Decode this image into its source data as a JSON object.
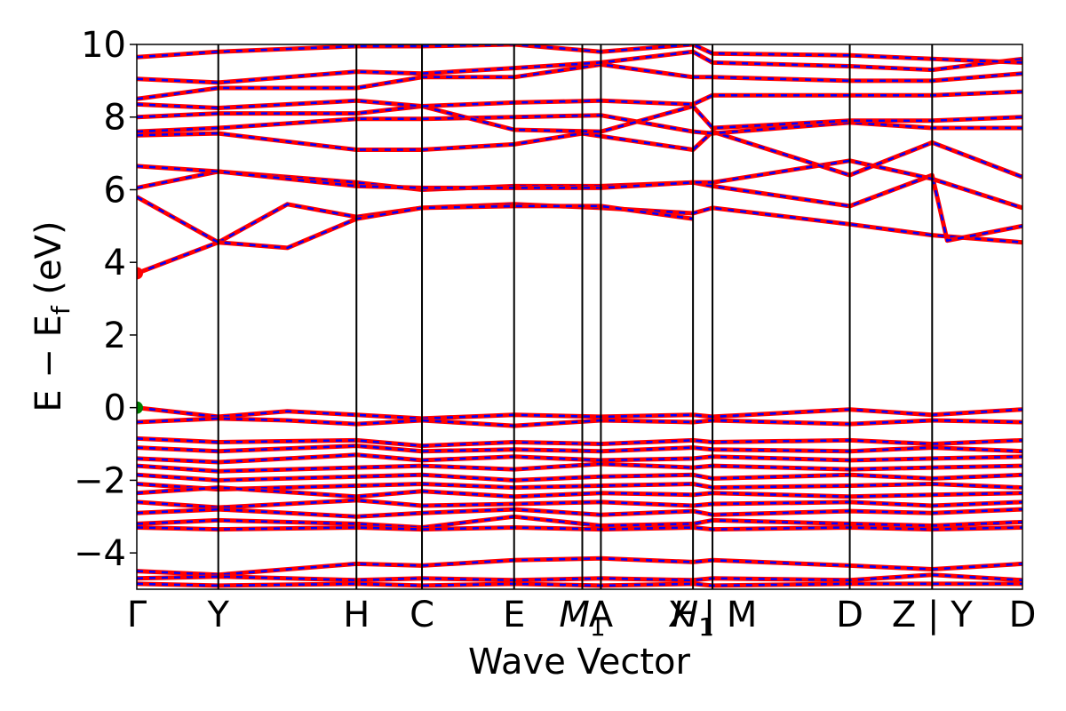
{
  "chart_data": {
    "type": "line",
    "title": "",
    "xlabel": "Wave Vector",
    "ylabel_main": "E − E",
    "ylabel_sub": "f",
    "ylabel_unit": "(eV)",
    "ylim": [
      -5,
      10
    ],
    "yticks": [
      -4,
      -2,
      0,
      2,
      4,
      6,
      8,
      10
    ],
    "yticklabels": [
      "−4",
      "−2",
      "0",
      "2",
      "4",
      "6",
      "8",
      "10"
    ],
    "grid": false,
    "colors": {
      "band_primary": "#ff0000",
      "band_secondary": "#0000ff",
      "vbm_marker": "#008000",
      "cbm_marker": "#ff0000",
      "kpath_line": "#000000"
    },
    "kpoints": [
      {
        "pos": 0.0,
        "label": "Γ"
      },
      {
        "pos": 0.092,
        "label": "Y"
      },
      {
        "pos": 0.248,
        "label": "H"
      },
      {
        "pos": 0.322,
        "label": "C"
      },
      {
        "pos": 0.426,
        "label": "E"
      },
      {
        "pos": 0.503,
        "label": "M",
        "sub": "1",
        "italic": true
      },
      {
        "pos": 0.524,
        "label": "A"
      },
      {
        "pos": 0.628,
        "label": "H",
        "sub": "1",
        "italic": true
      },
      {
        "pos": 0.65,
        "label": "X | M"
      },
      {
        "pos": 0.805,
        "label": "D"
      },
      {
        "pos": 0.898,
        "label": "Z | Y"
      },
      {
        "pos": 1.0,
        "label": "D"
      }
    ],
    "markers": [
      {
        "name": "VBM",
        "x": 0.0,
        "y": 0.0
      },
      {
        "name": "CBM",
        "x": 0.0,
        "y": 3.7
      }
    ],
    "bands": [
      {
        "name": "cb1",
        "x": [
          0,
          0.092,
          0.17,
          0.248,
          0.322,
          0.426,
          0.524,
          0.628,
          0.65,
          0.805,
          0.898,
          1.0
        ],
        "y": [
          3.7,
          4.55,
          5.6,
          5.25,
          5.5,
          5.6,
          5.5,
          5.35,
          5.5,
          5.05,
          4.75,
          4.55
        ]
      },
      {
        "name": "cb2",
        "x": [
          0,
          0.092,
          0.17,
          0.248,
          0.322,
          0.426,
          0.524,
          0.628
        ],
        "y": [
          5.8,
          4.55,
          4.4,
          5.2,
          5.5,
          5.55,
          5.55,
          5.2
        ]
      },
      {
        "name": "cb3",
        "x": [
          0,
          0.092,
          0.248,
          0.322,
          0.426,
          0.524,
          0.628,
          0.65,
          0.805,
          0.898,
          0.915,
          1.0
        ],
        "y": [
          6.05,
          6.5,
          6.2,
          6.0,
          6.1,
          6.1,
          6.2,
          6.1,
          5.55,
          6.4,
          4.6,
          5.0
        ]
      },
      {
        "name": "cb4",
        "x": [
          0,
          0.092,
          0.248,
          0.322,
          0.426,
          0.524,
          0.628,
          0.65,
          0.805,
          0.898,
          1.0
        ],
        "y": [
          6.65,
          6.5,
          6.1,
          6.05,
          6.05,
          6.05,
          6.2,
          6.2,
          6.8,
          6.3,
          5.5
        ]
      },
      {
        "name": "cb5",
        "x": [
          0,
          0.092,
          0.248,
          0.322,
          0.426,
          0.503,
          0.628,
          0.65,
          0.805,
          0.898,
          1.0
        ],
        "y": [
          7.5,
          7.55,
          7.1,
          7.1,
          7.25,
          7.55,
          7.1,
          7.6,
          6.4,
          7.3,
          6.35
        ]
      },
      {
        "name": "cb6",
        "x": [
          0,
          0.092,
          0.248,
          0.322,
          0.426,
          0.524,
          0.628,
          0.65,
          0.805,
          0.898,
          1.0
        ],
        "y": [
          7.6,
          7.7,
          7.95,
          7.95,
          8.0,
          8.05,
          7.6,
          7.55,
          7.85,
          7.7,
          7.7
        ]
      },
      {
        "name": "cb7",
        "x": [
          0,
          0.092,
          0.248,
          0.322,
          0.426,
          0.524,
          0.628,
          0.65,
          0.805,
          0.898,
          1.0
        ],
        "y": [
          8.0,
          8.1,
          8.1,
          8.3,
          7.65,
          7.6,
          8.3,
          7.7,
          7.9,
          7.9,
          8.0
        ]
      },
      {
        "name": "cb8",
        "x": [
          0,
          0.092,
          0.248,
          0.322,
          0.426,
          0.524,
          0.628,
          0.65,
          0.805,
          0.898,
          1.0
        ],
        "y": [
          8.35,
          8.25,
          8.45,
          8.3,
          8.4,
          8.45,
          8.35,
          8.6,
          8.6,
          8.6,
          8.7
        ]
      },
      {
        "name": "cb9",
        "x": [
          0,
          0.092,
          0.248,
          0.322,
          0.426,
          0.524,
          0.628,
          0.65,
          0.805,
          0.898,
          1.0
        ],
        "y": [
          8.5,
          8.8,
          8.8,
          9.1,
          9.1,
          9.45,
          9.1,
          9.1,
          9.0,
          9.0,
          9.2
        ]
      },
      {
        "name": "cb10",
        "x": [
          0,
          0.092,
          0.248,
          0.322,
          0.426,
          0.524,
          0.628,
          0.65,
          0.805,
          0.898,
          1.0
        ],
        "y": [
          9.05,
          8.95,
          9.25,
          9.2,
          9.35,
          9.5,
          9.8,
          9.5,
          9.4,
          9.3,
          9.6
        ]
      },
      {
        "name": "cb11",
        "x": [
          0,
          0.092,
          0.248,
          0.322,
          0.426,
          0.524,
          0.628,
          0.65,
          0.805,
          0.898,
          1.0
        ],
        "y": [
          9.65,
          9.8,
          9.95,
          9.95,
          10.0,
          9.8,
          10.0,
          9.75,
          9.7,
          9.6,
          9.5
        ]
      },
      {
        "name": "vb1",
        "x": [
          0,
          0.092,
          0.17,
          0.248,
          0.322,
          0.426,
          0.524,
          0.628,
          0.65,
          0.805,
          0.898,
          1.0
        ],
        "y": [
          0.0,
          -0.25,
          -0.1,
          -0.2,
          -0.3,
          -0.2,
          -0.25,
          -0.2,
          -0.25,
          -0.05,
          -0.2,
          -0.05
        ]
      },
      {
        "name": "vb2",
        "x": [
          0,
          0.092,
          0.17,
          0.248,
          0.322,
          0.426,
          0.524,
          0.628,
          0.65,
          0.805,
          0.898,
          1.0
        ],
        "y": [
          -0.4,
          -0.3,
          -0.35,
          -0.45,
          -0.35,
          -0.5,
          -0.35,
          -0.4,
          -0.35,
          -0.45,
          -0.35,
          -0.4
        ]
      },
      {
        "name": "vb3",
        "x": [
          0,
          0.092,
          0.248,
          0.322,
          0.426,
          0.524,
          0.628,
          0.65,
          0.805,
          0.898,
          1.0
        ],
        "y": [
          -0.85,
          -0.95,
          -0.9,
          -1.05,
          -0.95,
          -1.0,
          -0.9,
          -0.95,
          -0.9,
          -1.0,
          -0.9
        ]
      },
      {
        "name": "vb4",
        "x": [
          0,
          0.092,
          0.248,
          0.322,
          0.426,
          0.524,
          0.628,
          0.65,
          0.805,
          0.898,
          1.0
        ],
        "y": [
          -1.1,
          -1.2,
          -1.05,
          -1.2,
          -1.15,
          -1.2,
          -1.1,
          -1.15,
          -1.2,
          -1.1,
          -1.2
        ]
      },
      {
        "name": "vb5",
        "x": [
          0,
          0.092,
          0.248,
          0.322,
          0.426,
          0.524,
          0.628,
          0.65,
          0.805,
          0.898,
          1.0
        ],
        "y": [
          -1.4,
          -1.5,
          -1.3,
          -1.45,
          -1.35,
          -1.45,
          -1.4,
          -1.35,
          -1.45,
          -1.4,
          -1.35
        ]
      },
      {
        "name": "vb6",
        "x": [
          0,
          0.092,
          0.248,
          0.322,
          0.426,
          0.524,
          0.628,
          0.65,
          0.805,
          0.898,
          1.0
        ],
        "y": [
          -1.6,
          -1.75,
          -1.65,
          -1.6,
          -1.7,
          -1.55,
          -1.65,
          -1.6,
          -1.7,
          -1.65,
          -1.6
        ]
      },
      {
        "name": "vb7",
        "x": [
          0,
          0.092,
          0.248,
          0.322,
          0.426,
          0.524,
          0.628,
          0.65,
          0.805,
          0.898,
          1.0
        ],
        "y": [
          -1.85,
          -2.0,
          -1.9,
          -1.85,
          -2.0,
          -1.9,
          -1.85,
          -1.95,
          -1.85,
          -1.95,
          -1.85
        ]
      },
      {
        "name": "vb8",
        "x": [
          0,
          0.092,
          0.248,
          0.322,
          0.426,
          0.524,
          0.628,
          0.65,
          0.805,
          0.898,
          1.0
        ],
        "y": [
          -2.1,
          -2.25,
          -2.15,
          -2.1,
          -2.2,
          -2.15,
          -2.1,
          -2.2,
          -2.15,
          -2.1,
          -2.2
        ]
      },
      {
        "name": "vb9",
        "x": [
          0,
          0.092,
          0.248,
          0.322,
          0.426,
          0.524,
          0.628,
          0.65,
          0.805,
          0.898,
          1.0
        ],
        "y": [
          -2.35,
          -2.2,
          -2.45,
          -2.3,
          -2.45,
          -2.35,
          -2.4,
          -2.35,
          -2.45,
          -2.4,
          -2.35
        ]
      },
      {
        "name": "vb10",
        "x": [
          0,
          0.092,
          0.248,
          0.322,
          0.426,
          0.524,
          0.628,
          0.65,
          0.805,
          0.898,
          1.0
        ],
        "y": [
          -2.6,
          -2.75,
          -2.55,
          -2.7,
          -2.65,
          -2.6,
          -2.7,
          -2.65,
          -2.6,
          -2.7,
          -2.6
        ]
      },
      {
        "name": "vb11",
        "x": [
          0,
          0.092,
          0.248,
          0.322,
          0.426,
          0.524,
          0.628,
          0.65,
          0.805,
          0.898,
          1.0
        ],
        "y": [
          -2.9,
          -2.8,
          -3.0,
          -2.9,
          -2.8,
          -2.95,
          -2.85,
          -2.95,
          -2.85,
          -2.9,
          -2.8
        ]
      },
      {
        "name": "vb12",
        "x": [
          0,
          0.092,
          0.248,
          0.322,
          0.426,
          0.524,
          0.628,
          0.65,
          0.805,
          0.898,
          1.0
        ],
        "y": [
          -3.2,
          -3.1,
          -3.2,
          -3.3,
          -3.0,
          -3.25,
          -3.2,
          -3.1,
          -3.2,
          -3.25,
          -3.15
        ]
      },
      {
        "name": "vb13",
        "x": [
          0,
          0.092,
          0.248,
          0.322,
          0.426,
          0.524,
          0.628,
          0.65,
          0.805,
          0.898,
          1.0
        ],
        "y": [
          -3.3,
          -3.35,
          -3.3,
          -3.35,
          -3.3,
          -3.35,
          -3.3,
          -3.35,
          -3.3,
          -3.35,
          -3.3
        ]
      },
      {
        "name": "vb14",
        "x": [
          0,
          0.092,
          0.248,
          0.322,
          0.426,
          0.524,
          0.628,
          0.65,
          0.805,
          0.898,
          1.0
        ],
        "y": [
          -4.5,
          -4.6,
          -4.3,
          -4.35,
          -4.2,
          -4.15,
          -4.25,
          -4.2,
          -4.35,
          -4.45,
          -4.3
        ]
      },
      {
        "name": "vb15",
        "x": [
          0,
          0.092,
          0.248,
          0.322,
          0.426,
          0.524,
          0.628,
          0.65,
          0.805,
          0.898,
          1.0
        ],
        "y": [
          -4.7,
          -4.65,
          -4.75,
          -4.7,
          -4.75,
          -4.7,
          -4.75,
          -4.7,
          -4.75,
          -4.6,
          -4.75
        ]
      },
      {
        "name": "vb16",
        "x": [
          0,
          0.092,
          0.248,
          0.322,
          0.426,
          0.524,
          0.628,
          0.65,
          0.805,
          0.898,
          1.0
        ],
        "y": [
          -4.85,
          -4.9,
          -4.85,
          -4.9,
          -4.85,
          -4.9,
          -4.85,
          -4.9,
          -4.85,
          -4.85,
          -4.85
        ]
      }
    ]
  }
}
